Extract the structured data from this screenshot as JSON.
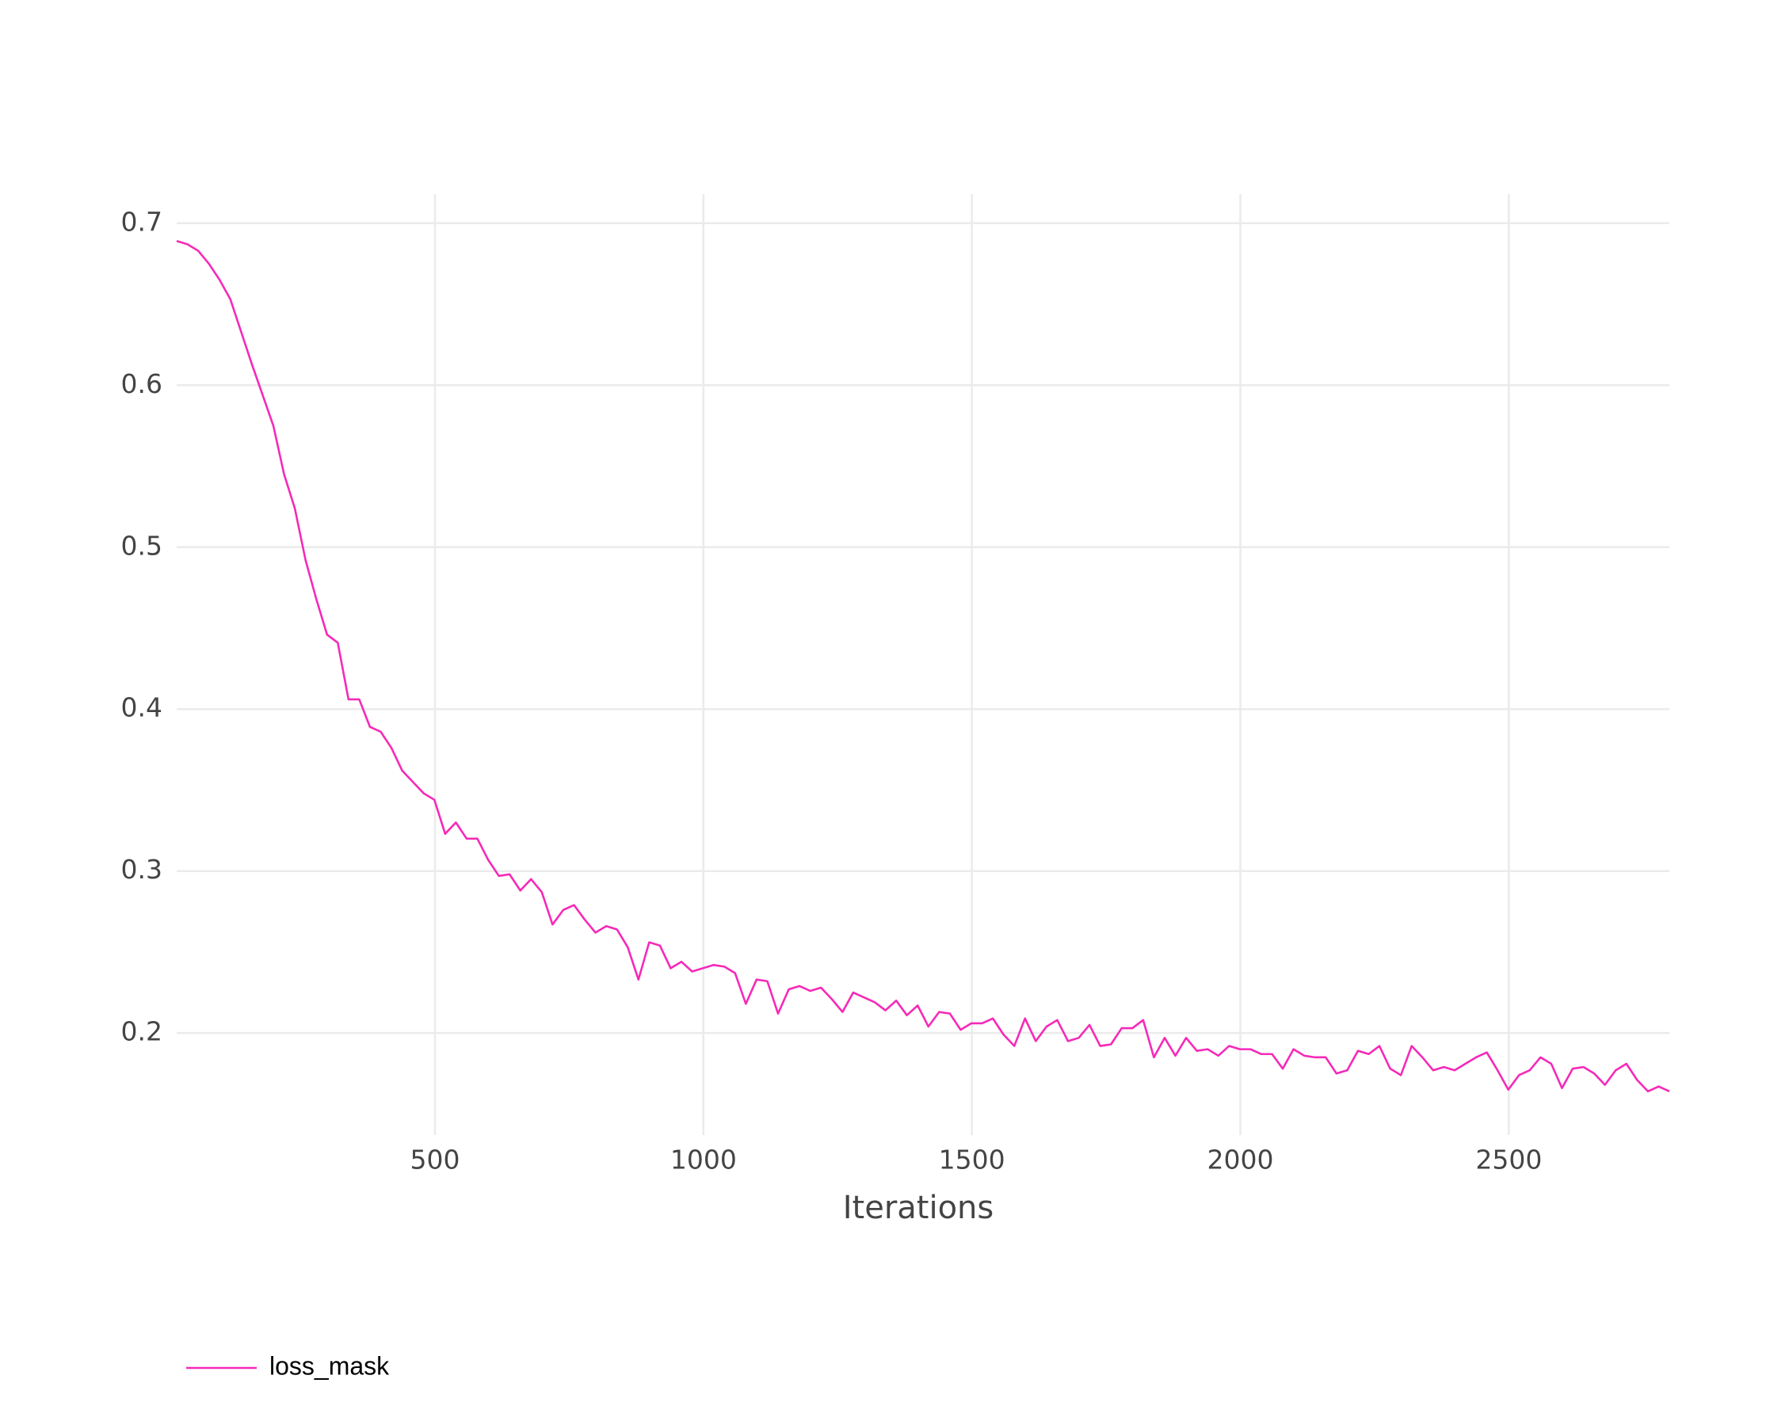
{
  "chart_data": {
    "type": "line",
    "x_label": "Iterations",
    "x": [
      19,
      39,
      59,
      79,
      99,
      119,
      139,
      159,
      179,
      199,
      219,
      239,
      259,
      279,
      299,
      319,
      339,
      359,
      379,
      399,
      419,
      439,
      459,
      479,
      499,
      519,
      539,
      559,
      579,
      599,
      619,
      639,
      659,
      679,
      699,
      719,
      739,
      759,
      779,
      799,
      819,
      839,
      859,
      879,
      899,
      919,
      939,
      959,
      979,
      999,
      1019,
      1039,
      1059,
      1079,
      1099,
      1119,
      1139,
      1159,
      1179,
      1199,
      1219,
      1239,
      1259,
      1279,
      1299,
      1319,
      1339,
      1359,
      1379,
      1399,
      1419,
      1439,
      1459,
      1479,
      1499,
      1519,
      1539,
      1559,
      1579,
      1599,
      1619,
      1639,
      1659,
      1679,
      1699,
      1719,
      1739,
      1759,
      1779,
      1799,
      1819,
      1839,
      1859,
      1879,
      1899,
      1919,
      1939,
      1959,
      1979,
      1999,
      2019,
      2039,
      2059,
      2079,
      2099,
      2119,
      2139,
      2159,
      2179,
      2199,
      2219,
      2239,
      2259,
      2279,
      2299,
      2319,
      2339,
      2359,
      2379,
      2399,
      2419,
      2439,
      2459,
      2479,
      2499,
      2519,
      2539,
      2559,
      2579,
      2599,
      2619,
      2639,
      2659,
      2679,
      2699,
      2719,
      2739,
      2759,
      2779,
      2799
    ],
    "series": [
      {
        "name": "loss_mask",
        "color": "#f52ab8",
        "values": [
          0.689,
          0.687,
          0.683,
          0.675,
          0.665,
          0.653,
          0.633,
          0.613,
          0.594,
          0.575,
          0.545,
          0.524,
          0.492,
          0.468,
          0.446,
          0.441,
          0.406,
          0.406,
          0.389,
          0.386,
          0.376,
          0.362,
          0.355,
          0.348,
          0.344,
          0.323,
          0.33,
          0.32,
          0.32,
          0.307,
          0.297,
          0.298,
          0.288,
          0.295,
          0.287,
          0.267,
          0.276,
          0.279,
          0.27,
          0.262,
          0.266,
          0.264,
          0.253,
          0.233,
          0.256,
          0.254,
          0.24,
          0.244,
          0.238,
          0.24,
          0.242,
          0.241,
          0.237,
          0.218,
          0.233,
          0.232,
          0.212,
          0.227,
          0.229,
          0.226,
          0.228,
          0.221,
          0.213,
          0.225,
          0.222,
          0.219,
          0.214,
          0.22,
          0.211,
          0.217,
          0.204,
          0.213,
          0.212,
          0.202,
          0.206,
          0.206,
          0.209,
          0.199,
          0.192,
          0.209,
          0.195,
          0.204,
          0.208,
          0.195,
          0.197,
          0.205,
          0.192,
          0.193,
          0.203,
          0.203,
          0.208,
          0.185,
          0.197,
          0.186,
          0.197,
          0.189,
          0.19,
          0.186,
          0.192,
          0.19,
          0.19,
          0.187,
          0.187,
          0.178,
          0.19,
          0.186,
          0.185,
          0.185,
          0.175,
          0.177,
          0.189,
          0.187,
          0.192,
          0.178,
          0.174,
          0.192,
          0.185,
          0.177,
          0.179,
          0.177,
          0.181,
          0.185,
          0.188,
          0.177,
          0.165,
          0.174,
          0.177,
          0.185,
          0.181,
          0.166,
          0.178,
          0.179,
          0.175,
          0.168,
          0.177,
          0.181,
          0.171,
          0.164,
          0.167,
          0.164
        ]
      }
    ],
    "xlim": [
      19,
      2799
    ],
    "xticks": [
      500,
      1000,
      1500,
      2000,
      2500
    ],
    "ylim": [
      0.137,
      0.718
    ],
    "yticks": [
      0.2,
      0.3,
      0.4,
      0.5,
      0.6,
      0.7
    ],
    "grid": true,
    "legend": "bottom-left"
  }
}
